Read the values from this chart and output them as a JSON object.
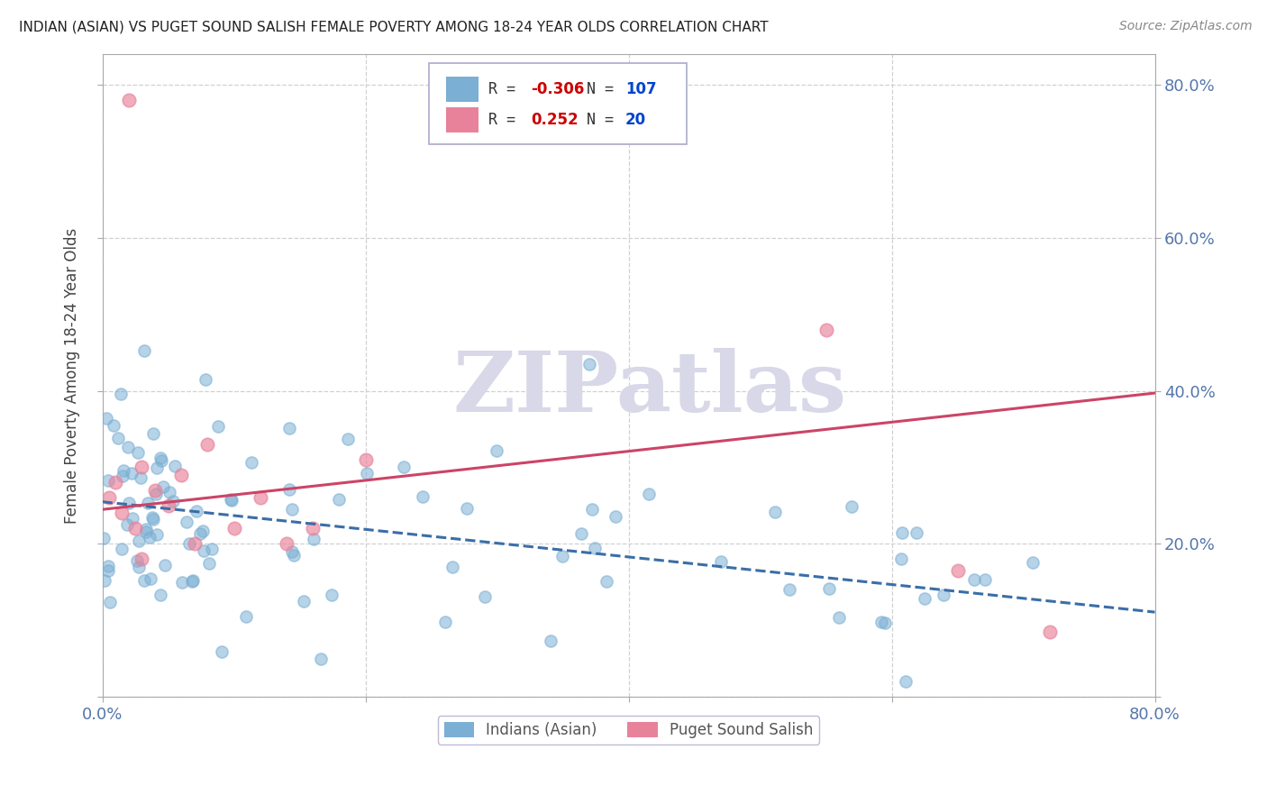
{
  "title": "INDIAN (ASIAN) VS PUGET SOUND SALISH FEMALE POVERTY AMONG 18-24 YEAR OLDS CORRELATION CHART",
  "source": "Source: ZipAtlas.com",
  "ylabel": "Female Poverty Among 18-24 Year Olds",
  "xlim": [
    0,
    0.8
  ],
  "ylim": [
    0,
    0.84
  ],
  "x_ticks": [
    0.0,
    0.2,
    0.4,
    0.6,
    0.8
  ],
  "x_tick_labels": [
    "0.0%",
    "",
    "",
    "",
    "80.0%"
  ],
  "y_ticks": [
    0.0,
    0.2,
    0.4,
    0.6,
    0.8
  ],
  "right_y_tick_labels": [
    "",
    "20.0%",
    "40.0%",
    "60.0%",
    "80.0%"
  ],
  "series1_color": "#7bafd4",
  "series2_color": "#e8829a",
  "series1_label": "Indians (Asian)",
  "series2_label": "Puget Sound Salish",
  "series1_R": -0.306,
  "series1_N": 107,
  "series2_R": 0.252,
  "series2_N": 20,
  "series1_line_color": "#3a6ea8",
  "series2_line_color": "#cc4466",
  "background_color": "#ffffff",
  "grid_color": "#cccccc",
  "title_color": "#222222",
  "axis_label_color": "#444444",
  "tick_label_color": "#5577aa",
  "legend_box_color": "#aaaaaa",
  "watermark_color": "#d8d8e8"
}
